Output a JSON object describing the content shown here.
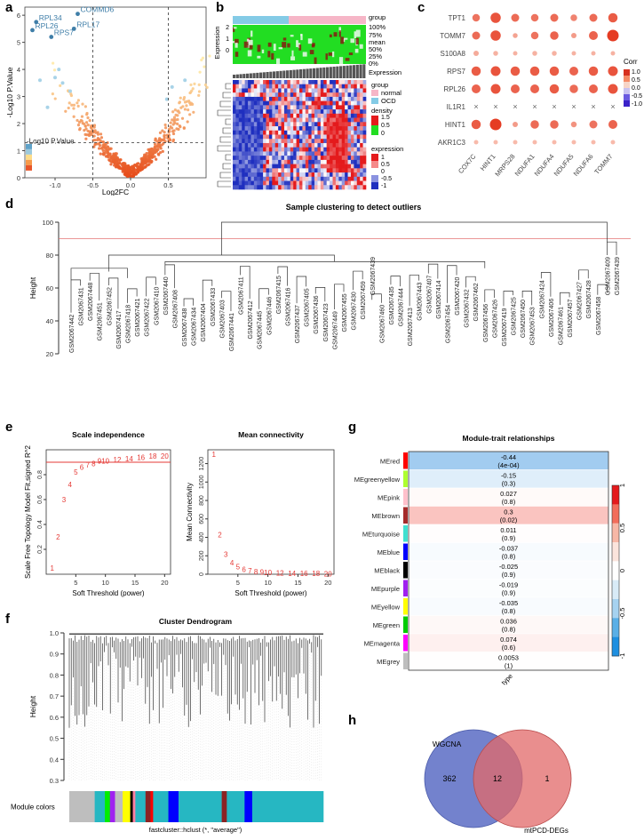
{
  "panel_labels": {
    "a": "a",
    "b": "b",
    "c": "c",
    "d": "d",
    "e": "e",
    "f": "f",
    "g": "g",
    "h": "h"
  },
  "chart_data": [
    {
      "id": "a",
      "type": "scatter",
      "title": "",
      "xlabel": "Log2FC",
      "ylabel": "-Log10 P.Value",
      "xlim": [
        -1.4,
        1.0
      ],
      "ylim": [
        0,
        6.3
      ],
      "x_ticks": [
        "-1.0",
        "-0.5",
        "0.0",
        "0.5"
      ],
      "x_tick_values": [
        -1.0,
        -0.5,
        0.0,
        0.5
      ],
      "y_ticks": [
        "0",
        "1",
        "2",
        "3",
        "4",
        "5",
        "6"
      ],
      "y_tick_values": [
        0,
        1,
        2,
        3,
        4,
        5,
        6
      ],
      "thresholds": {
        "log2fc": [
          -0.5,
          0.5
        ],
        "pvalue_line": 1.3
      },
      "legend_title": "-Log10 P.Value",
      "labeled_points": [
        {
          "label": "COMMD6",
          "x": -0.7,
          "y": 6.05
        },
        {
          "label": "RPL34",
          "x": -1.25,
          "y": 5.75
        },
        {
          "label": "RPL26",
          "x": -1.3,
          "y": 5.45
        },
        {
          "label": "RPL17",
          "x": -0.75,
          "y": 5.5
        },
        {
          "label": "RPS7",
          "x": -1.05,
          "y": 5.2
        }
      ]
    },
    {
      "id": "b",
      "type": "heatmap",
      "title": "",
      "legend": {
        "group_title": "group",
        "groups": [
          "normal",
          "OCD"
        ],
        "group_colors": [
          "#f6b6c7",
          "#84cbe6"
        ],
        "top_labels": [
          "100%",
          "75%",
          "mean",
          "50%",
          "25%",
          "0%"
        ],
        "top_scale_ticks": [
          "2",
          "1",
          "0"
        ],
        "expression_axis": "Expression",
        "expression_bar": "Expression",
        "density_title": "density",
        "density_ticks": [
          "1.5",
          "0.5",
          "0"
        ],
        "expression_title": "expression",
        "expression_ticks": [
          "1",
          "0.5",
          "0",
          "-0.5",
          "-1"
        ]
      }
    },
    {
      "id": "c",
      "type": "scatter",
      "title": "",
      "rows": [
        "TPT1",
        "TOMM7",
        "S100A8",
        "RPS7",
        "RPL26",
        "IL1R1",
        "HINT1",
        "AKR1C3"
      ],
      "cols": [
        "COX7C",
        "HINT1",
        "MRPS28",
        "NDUFA1",
        "NDUFA4",
        "NDUFA5",
        "NDUFA6",
        "TOMM7"
      ],
      "legend_title": "Corr",
      "legend_ticks": [
        "1.0",
        "0.5",
        "0.0",
        "-0.5",
        "-1.0"
      ],
      "sizes": [
        [
          0.55,
          0.85,
          0.6,
          0.55,
          0.6,
          0.45,
          0.6,
          0.75
        ],
        [
          0.6,
          0.85,
          0.25,
          0.55,
          0.65,
          0.3,
          0.7,
          1.0
        ],
        [
          0.3,
          0.25,
          0.2,
          0.25,
          0.25,
          0.2,
          0.2,
          0.2
        ],
        [
          0.75,
          0.8,
          0.75,
          0.75,
          0.75,
          0.7,
          0.75,
          0.8
        ],
        [
          0.7,
          0.8,
          0.7,
          0.7,
          0.75,
          0.65,
          0.7,
          0.8
        ],
        [
          0,
          0,
          0,
          0,
          0,
          0,
          0,
          0
        ],
        [
          0.75,
          1.0,
          0.3,
          0.65,
          0.65,
          0.35,
          0.6,
          0.7
        ],
        [
          0.2,
          0.2,
          0.2,
          0.2,
          0.2,
          0.2,
          0.2,
          0.2
        ]
      ],
      "corr": [
        [
          0.6,
          0.8,
          0.65,
          0.6,
          0.65,
          0.5,
          0.65,
          0.75
        ],
        [
          0.65,
          0.8,
          0.3,
          0.6,
          0.7,
          0.35,
          0.7,
          0.95
        ],
        [
          0.25,
          0.2,
          0.2,
          0.2,
          0.2,
          0.2,
          0.2,
          0.2
        ],
        [
          0.75,
          0.8,
          0.75,
          0.75,
          0.75,
          0.7,
          0.75,
          0.8
        ],
        [
          0.7,
          0.8,
          0.7,
          0.7,
          0.75,
          0.65,
          0.7,
          0.8
        ],
        [
          0,
          0,
          0,
          0,
          0,
          0,
          0,
          0
        ],
        [
          0.75,
          0.95,
          0.35,
          0.65,
          0.65,
          0.4,
          0.6,
          0.7
        ],
        [
          0.15,
          0.15,
          0.15,
          0.15,
          0.15,
          0.15,
          0.15,
          0.15
        ]
      ],
      "cross_row": "IL1R1"
    },
    {
      "id": "d",
      "type": "dendrogram",
      "title": "Sample clustering to detect outliers",
      "ylabel": "Height",
      "y_ticks": [
        "20",
        "40",
        "60",
        "80",
        "100"
      ],
      "y_tick_values": [
        20,
        40,
        60,
        80,
        100
      ],
      "ylim": [
        20,
        100
      ],
      "cut_height": 90,
      "leaves": [
        "GSM2067442",
        "GSM2067431",
        "GSM2067448",
        "GSM2067451",
        "GSM2067452",
        "GSM2067417",
        "GSM2067418",
        "GSM2067421",
        "GSM2067422",
        "GSM2067410",
        "GSM2067440",
        "GSM2067408",
        "GSM2067438",
        "GSM2067434",
        "GSM2067404",
        "GSM2067433",
        "GSM2067403",
        "GSM2067441",
        "GSM2067411",
        "GSM2067412",
        "GSM2067445",
        "GSM2067446",
        "GSM2067415",
        "GSM2067416",
        "GSM2067437",
        "GSM2067405",
        "GSM2067436",
        "GSM2067423",
        "GSM2067449",
        "GSM2067455",
        "GSM2067430",
        "GSM2067459",
        "GSM2067439",
        "GSM2067460",
        "GSM2067435",
        "GSM2067444",
        "GSM2067413",
        "GSM2067443",
        "GSM2067407",
        "GSM2067414",
        "GSM2067454",
        "GSM2067420",
        "GSM2067432",
        "GSM2067462",
        "GSM2067456",
        "GSM2067426",
        "GSM2067419",
        "GSM2067425",
        "GSM2067450",
        "GSM2067453",
        "GSM2067424",
        "GSM2067406",
        "GSM2067461",
        "GSM2067457",
        "GSM2067427",
        "GSM2067428",
        "GSM2067458"
      ],
      "outliers": [
        "GSM2067409",
        "GSM2067439"
      ]
    },
    {
      "id": "e1",
      "type": "scatter",
      "title": "Scale independence",
      "xlabel": "Soft Threshold (power)",
      "ylabel": "Scale Free Topology Model Fit,signed R^2",
      "xlim": [
        0,
        21
      ],
      "ylim": [
        0,
        1.0
      ],
      "x_ticks": [
        "5",
        "10",
        "15",
        "20"
      ],
      "x_tick_values": [
        5,
        10,
        15,
        20
      ],
      "y_ticks": [
        "0.2",
        "0.4",
        "0.6",
        "0.8"
      ],
      "y_tick_values": [
        0.2,
        0.4,
        0.6,
        0.8
      ],
      "hline": 0.9,
      "x": [
        1,
        2,
        3,
        4,
        5,
        6,
        7,
        8,
        9,
        10,
        12,
        14,
        16,
        18,
        20
      ],
      "y": [
        0.05,
        0.3,
        0.6,
        0.72,
        0.82,
        0.86,
        0.88,
        0.89,
        0.91,
        0.91,
        0.92,
        0.93,
        0.94,
        0.95,
        0.95
      ],
      "labels": [
        "1",
        "2",
        "3",
        "4",
        "5",
        "6",
        "7",
        "8",
        "9",
        "10",
        "12",
        "14",
        "16",
        "18",
        "20"
      ]
    },
    {
      "id": "e2",
      "type": "scatter",
      "title": "Mean connectivity",
      "xlabel": "Soft Threshold (power)",
      "ylabel": "Mean Connectivity",
      "xlim": [
        0,
        21
      ],
      "ylim": [
        0,
        1350
      ],
      "x_ticks": [
        "5",
        "10",
        "15",
        "20"
      ],
      "x_tick_values": [
        5,
        10,
        15,
        20
      ],
      "y_ticks": [
        "0",
        "200",
        "400",
        "600",
        "800",
        "1000",
        "1200"
      ],
      "y_tick_values": [
        0,
        200,
        400,
        600,
        800,
        1000,
        1200
      ],
      "x": [
        1,
        2,
        3,
        4,
        5,
        6,
        7,
        8,
        9,
        10,
        12,
        14,
        16,
        18,
        20
      ],
      "y": [
        1300,
        430,
        215,
        125,
        80,
        55,
        40,
        30,
        25,
        20,
        15,
        12,
        10,
        8,
        7
      ],
      "labels": [
        "1",
        "2",
        "3",
        "4",
        "5",
        "6",
        "7",
        "8",
        "9",
        "10",
        "12",
        "14",
        "16",
        "18",
        "20"
      ]
    },
    {
      "id": "f",
      "type": "dendrogram",
      "title": "Cluster Dendrogram",
      "ylabel": "Height",
      "xlabel": "fastcluster::hclust (*, \"average\")",
      "module_label": "Module colors",
      "y_ticks": [
        "0.3",
        "0.4",
        "0.5",
        "0.6",
        "0.7",
        "0.8",
        "0.9",
        "1.0"
      ],
      "y_tick_values": [
        0.3,
        0.4,
        0.5,
        0.6,
        0.7,
        0.8,
        0.9,
        1.0
      ],
      "ylim": [
        0.3,
        1.0
      ],
      "module_colors": [
        {
          "color": "#bebebe",
          "frac": 0.1
        },
        {
          "color": "#26b7c2",
          "frac": 0.04
        },
        {
          "color": "#00ee00",
          "frac": 0.02
        },
        {
          "color": "#a020f0",
          "frac": 0.02
        },
        {
          "color": "#bebebe",
          "frac": 0.03
        },
        {
          "color": "#ffff00",
          "frac": 0.03
        },
        {
          "color": "#000000",
          "frac": 0.01
        },
        {
          "color": "#ff7fa0",
          "frac": 0.01
        },
        {
          "color": "#26b7c2",
          "frac": 0.04
        },
        {
          "color": "#8b2323",
          "frac": 0.02
        },
        {
          "color": "#ff0000",
          "frac": 0.01
        },
        {
          "color": "#26b7c2",
          "frac": 0.06
        },
        {
          "color": "#0000ff",
          "frac": 0.04
        },
        {
          "color": "#26b7c2",
          "frac": 0.17
        },
        {
          "color": "#8b2323",
          "frac": 0.02
        },
        {
          "color": "#26b7c2",
          "frac": 0.07
        },
        {
          "color": "#0000ff",
          "frac": 0.03
        },
        {
          "color": "#26b7c2",
          "frac": 0.28
        }
      ]
    },
    {
      "id": "g",
      "type": "heatmap",
      "title": "Module-trait relationships",
      "xlabel": "type",
      "colorbar_ticks": [
        "1",
        "0.5",
        "0",
        "-0.5",
        "-1"
      ],
      "modules": [
        {
          "name": "MEred",
          "color": "#ff0000",
          "r": "-0.44",
          "p": "(4e-04)",
          "value": -0.44
        },
        {
          "name": "MEgreenyellow",
          "color": "#adff2f",
          "r": "-0.15",
          "p": "(0.3)",
          "value": -0.15
        },
        {
          "name": "MEpink",
          "color": "#ffc0cb",
          "r": "0.027",
          "p": "(0.8)",
          "value": 0.027
        },
        {
          "name": "MEbrown",
          "color": "#a52a2a",
          "r": "0.3",
          "p": "(0.02)",
          "value": 0.3
        },
        {
          "name": "MEturquoise",
          "color": "#40e0d0",
          "r": "0.011",
          "p": "(0.9)",
          "value": 0.011
        },
        {
          "name": "MEblue",
          "color": "#0000ff",
          "r": "-0.037",
          "p": "(0.8)",
          "value": -0.037
        },
        {
          "name": "MEblack",
          "color": "#000000",
          "r": "-0.025",
          "p": "(0.9)",
          "value": -0.025
        },
        {
          "name": "MEpurple",
          "color": "#a020f0",
          "r": "-0.019",
          "p": "(0.9)",
          "value": -0.019
        },
        {
          "name": "MEyellow",
          "color": "#ffff00",
          "r": "-0.035",
          "p": "(0.8)",
          "value": -0.035
        },
        {
          "name": "MEgreen",
          "color": "#00cd00",
          "r": "0.036",
          "p": "(0.8)",
          "value": 0.036
        },
        {
          "name": "MEmagenta",
          "color": "#ff00ff",
          "r": "0.074",
          "p": "(0.6)",
          "value": 0.074
        },
        {
          "name": "MEgrey",
          "color": "#bebebe",
          "r": "0.0053",
          "p": "(1)",
          "value": 0.0053
        }
      ]
    },
    {
      "id": "h",
      "type": "venn",
      "sets": [
        {
          "name": "WGCNA",
          "only": "362",
          "color": "#5b6cc4"
        },
        {
          "name": "mtPCD-DEGs",
          "only": "1",
          "color": "#e26868"
        }
      ],
      "intersection": "12"
    }
  ]
}
